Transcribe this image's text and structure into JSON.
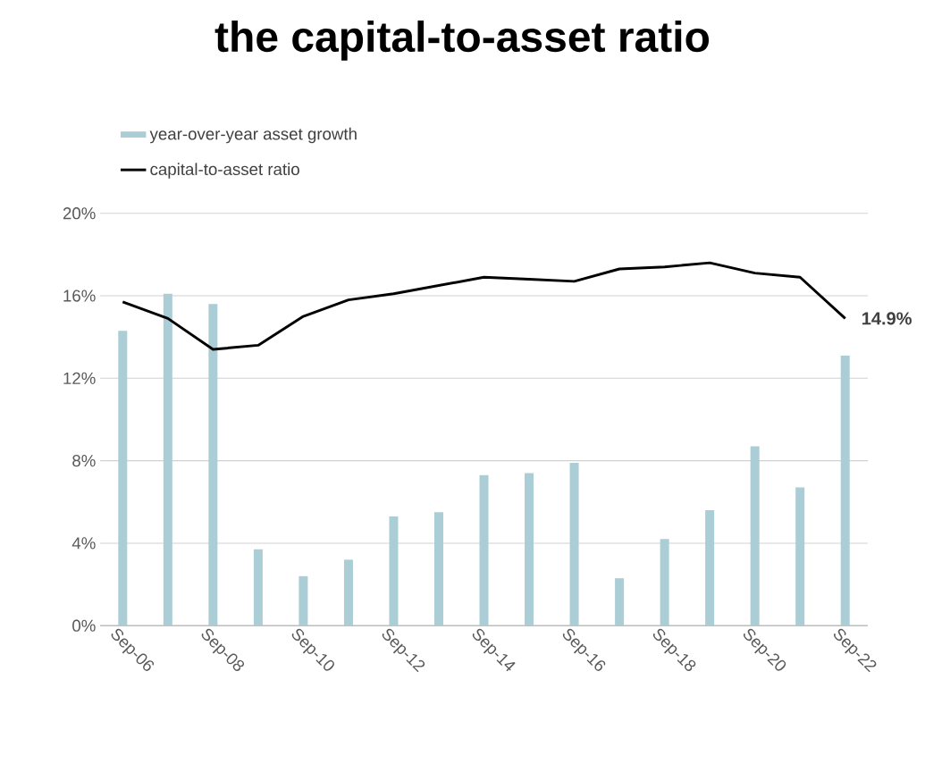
{
  "chart_data": {
    "type": "bar",
    "title": "the capital-to-asset ratio",
    "categories": [
      "Sep-06",
      null,
      "Sep-08",
      null,
      "Sep-10",
      null,
      "Sep-12",
      null,
      "Sep-14",
      null,
      "Sep-16",
      null,
      "Sep-18",
      null,
      "Sep-20",
      null,
      "Sep-22"
    ],
    "series": [
      {
        "name": "year-over-year asset growth",
        "color": "#abcdd6",
        "values": [
          14.3,
          16.1,
          15.6,
          3.7,
          2.4,
          3.2,
          5.3,
          5.5,
          7.3,
          7.4,
          7.9,
          2.3,
          4.2,
          5.6,
          8.7,
          6.7,
          13.1
        ]
      },
      {
        "name": "capital-to-asset ratio",
        "type": "line",
        "color": "#000000",
        "values": [
          15.7,
          14.9,
          13.4,
          13.6,
          15.0,
          15.8,
          16.1,
          16.5,
          16.9,
          16.8,
          16.7,
          17.3,
          17.4,
          17.6,
          17.1,
          16.9,
          14.9
        ],
        "value_labels": [
          null,
          null,
          null,
          null,
          null,
          null,
          null,
          null,
          null,
          null,
          null,
          null,
          null,
          null,
          null,
          null,
          "14.9%"
        ]
      }
    ],
    "ylim": [
      0,
      20
    ],
    "yticks": [
      {
        "value": 0,
        "label": "0%"
      },
      {
        "value": 4,
        "label": "4%"
      },
      {
        "value": 8,
        "label": "8%"
      },
      {
        "value": 12,
        "label": "12%"
      },
      {
        "value": 16,
        "label": "16%"
      },
      {
        "value": 20,
        "label": "20%"
      }
    ],
    "grid": "y",
    "legend": "top left"
  }
}
